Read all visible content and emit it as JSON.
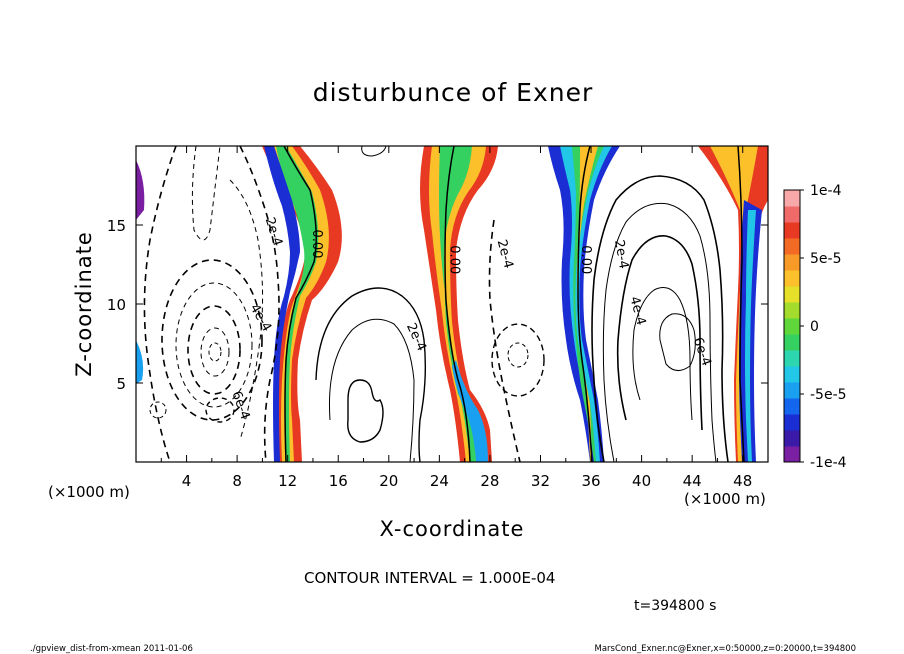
{
  "chart_data": {
    "type": "heatmap",
    "title": "disturbunce of Exner",
    "xlabel": "X-coordinate",
    "ylabel": "Z-coordinate",
    "x_unit": "(×1000 m)",
    "y_unit": "(×1000 m)",
    "xlim": [
      0,
      50
    ],
    "ylim": [
      0,
      20
    ],
    "x_ticks": [
      4,
      8,
      12,
      16,
      20,
      24,
      28,
      32,
      36,
      40,
      44,
      48
    ],
    "x_tick_labels": [
      "4",
      "8",
      "12",
      "16",
      "20",
      "24",
      "28",
      "32",
      "36",
      "40",
      "44",
      "48"
    ],
    "y_ticks": [
      5,
      10,
      15
    ],
    "y_tick_labels": [
      "5",
      "10",
      "15"
    ],
    "colorbar": {
      "min": -0.0001,
      "max": 0.0001,
      "ticks": [
        0.0001,
        5e-05,
        0,
        -5e-05,
        -0.0001
      ],
      "tick_labels": [
        "1e-4",
        "5e-5",
        "0",
        "-5e-5",
        "-1e-4"
      ],
      "colors": [
        "#7a1fa2",
        "#3a1aa6",
        "#1b2ed4",
        "#1466ee",
        "#1aa0f0",
        "#22c6e6",
        "#2ed6b0",
        "#34d060",
        "#5fd63a",
        "#a4dc2e",
        "#e6e02a",
        "#fbc02a",
        "#f89a28",
        "#f26a24",
        "#e83a22",
        "#f06a6a",
        "#f8a8a8"
      ]
    },
    "contour_labels": [
      {
        "text": "2e-4",
        "x": 10.6,
        "z": 14.5,
        "rot": 72
      },
      {
        "text": "0.00",
        "x": 14.0,
        "z": 13.8,
        "rot": 90
      },
      {
        "text": "4e-4",
        "x": 9.6,
        "z": 9.0,
        "rot": 60
      },
      {
        "text": "6e-4",
        "x": 8.0,
        "z": 3.5,
        "rot": 70
      },
      {
        "text": "2e-4",
        "x": 21.9,
        "z": 7.8,
        "rot": 65
      },
      {
        "text": "0.00",
        "x": 24.9,
        "z": 12.8,
        "rot": 90
      },
      {
        "text": "2e-4",
        "x": 28.9,
        "z": 13.1,
        "rot": 75
      },
      {
        "text": "0.00",
        "x": 35.3,
        "z": 12.8,
        "rot": 90
      },
      {
        "text": "2e-4",
        "x": 38.1,
        "z": 13.1,
        "rot": 80
      },
      {
        "text": "4e-4",
        "x": 39.4,
        "z": 9.5,
        "rot": 75
      },
      {
        "text": "6e-4",
        "x": 44.5,
        "z": 6.9,
        "rot": 70
      }
    ],
    "info": {
      "contour_interval": "CONTOUR INTERVAL = 1.000E-04",
      "time": "t=394800 s",
      "footer_left": "./gpview_dist-from-xmean   2011-01-06",
      "footer_right": "MarsCond_Exner.nc@Exner,x=0:50000,z=0:20000,t=394800"
    }
  }
}
